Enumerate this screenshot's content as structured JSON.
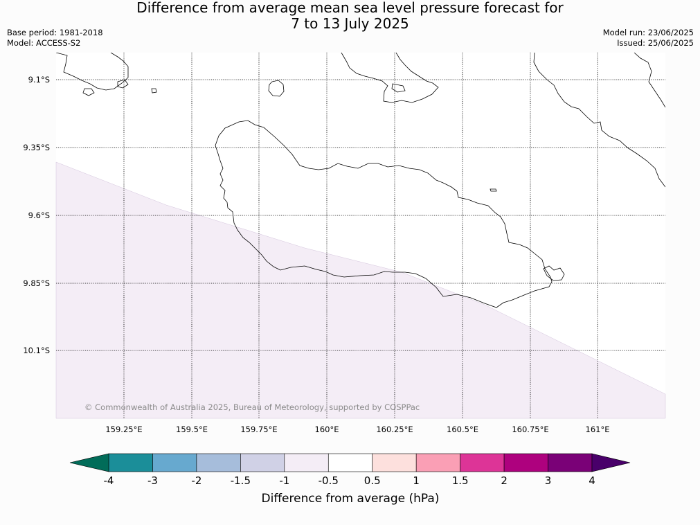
{
  "title": {
    "line1": "Difference from average mean sea level pressure forecast for",
    "line2": "7 to 13 July 2025"
  },
  "info_left": {
    "base_period": "Base period: 1981-2018",
    "model": "Model: ACCESS-S2"
  },
  "info_right": {
    "model_run": "Model run: 23/06/2025",
    "issued": "Issued: 25/06/2025"
  },
  "map": {
    "lat_labels": [
      "9.1°S",
      "9.35°S",
      "9.6°S",
      "9.85°S",
      "10.1°S"
    ],
    "lon_labels": [
      "159.25°E",
      "159.5°E",
      "159.75°E",
      "160°E",
      "160.25°E",
      "160.5°E",
      "160.75°E",
      "161°E"
    ],
    "copyright": "© Commonwealth of Australia 2025, Bureau of Meteorology, supported by COSPPac",
    "shaded_value_range_hPa": [
      -1,
      -0.5
    ],
    "shade_color": "#f4edf6"
  },
  "colorbar": {
    "ticks": [
      "-4",
      "-3",
      "-2",
      "-1.5",
      "-1",
      "-0.5",
      "0.5",
      "1",
      "1.5",
      "2",
      "3",
      "4"
    ],
    "colors": [
      "#1b8e99",
      "#67a9cf",
      "#a6bddb",
      "#d0d1e6",
      "#f4edf6",
      "#ffffff",
      "#fde0dd",
      "#fa9fb5",
      "#dd3497",
      "#ae017e",
      "#7a0177"
    ],
    "under_color": "#016c59",
    "over_color": "#49006a",
    "label": "Difference from average (hPa)"
  }
}
